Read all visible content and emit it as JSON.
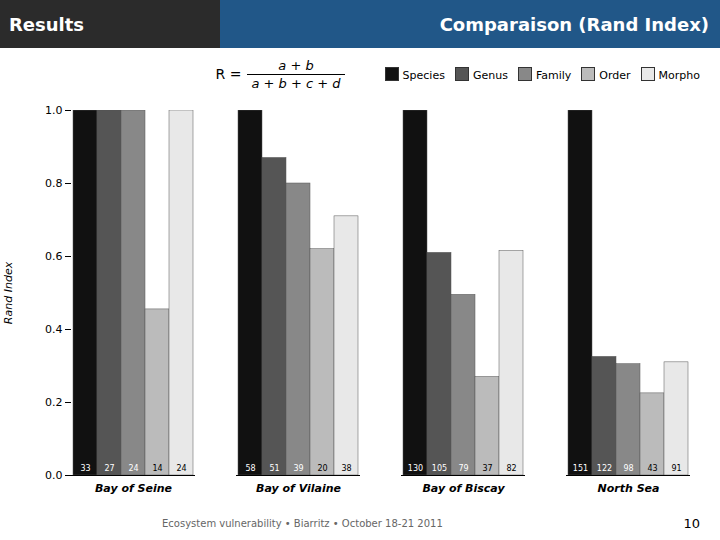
{
  "chart_data": {
    "type": "bar",
    "title": "Results",
    "subtitle": "Comparaison (Rand Index)",
    "ylabel": "Rand Index",
    "categories": [
      "Bay of Seine",
      "Bay of Vilaine",
      "Bay of Biscay",
      "North Sea"
    ],
    "series": [
      {
        "name": "Species",
        "color": "#111111",
        "values": [
          1.0,
          1.0,
          1.0,
          1.0
        ],
        "counts": [
          33,
          58,
          130,
          151
        ]
      },
      {
        "name": "Genus",
        "color": "#555555",
        "values": [
          1.0,
          0.87,
          0.61,
          0.325
        ],
        "counts": [
          27,
          51,
          105,
          122
        ]
      },
      {
        "name": "Family",
        "color": "#888888",
        "values": [
          1.0,
          0.8,
          0.495,
          0.305
        ],
        "counts": [
          24,
          39,
          79,
          98
        ]
      },
      {
        "name": "Order",
        "color": "#bbbbbb",
        "values": [
          0.455,
          0.62,
          0.27,
          0.225
        ],
        "counts": [
          14,
          20,
          37,
          43
        ]
      },
      {
        "name": "Morpho",
        "color": "#e8e8e8",
        "values": [
          1.0,
          0.71,
          0.615,
          0.31
        ],
        "counts": [
          24,
          38,
          82,
          91
        ]
      }
    ],
    "ylim": [
      0.0,
      1.0
    ],
    "yticks": [
      {
        "value": 0,
        "label": "0.0"
      },
      0.2,
      0.4,
      0.6,
      0.8,
      {
        "value": 1,
        "label": "1.0"
      }
    ],
    "legend": "upper right",
    "grid": false,
    "annotations": [
      "R =",
      "a + b",
      "a + b + c + d",
      "Ecosystem vulnerability  • Biarritz • October 18-21 2011",
      "10"
    ]
  }
}
